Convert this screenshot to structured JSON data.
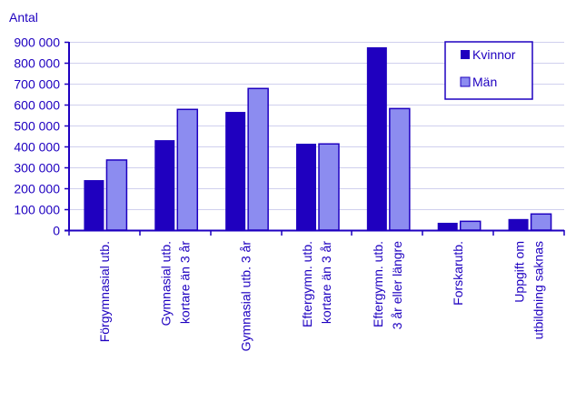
{
  "chart_data": {
    "type": "bar",
    "title": "",
    "ylabel": "Antal",
    "xlabel": "",
    "ylim": [
      0,
      900000
    ],
    "yticks": [
      0,
      100000,
      200000,
      300000,
      400000,
      500000,
      600000,
      700000,
      800000,
      900000
    ],
    "ytick_labels": [
      "0",
      "100 000",
      "200 000",
      "300 000",
      "400 000",
      "500 000",
      "600 000",
      "700 000",
      "800 000",
      "900 000"
    ],
    "grid": true,
    "legend_position": "top-right",
    "categories": [
      [
        "Förgymnasial utb."
      ],
      [
        "Gymnasial utb.",
        "kortare än 3 år"
      ],
      [
        "Gymnasial utb. 3 år"
      ],
      [
        "Eftergymn. utb.",
        "kortare än 3 år"
      ],
      [
        "Eftergymn. utb.",
        "3 år eller längre"
      ],
      [
        "Forskarutb."
      ],
      [
        "Uppgift om",
        "utbildning saknas"
      ]
    ],
    "series": [
      {
        "name": "Kvinnor",
        "color": "#1f00bf",
        "values": [
          239000,
          430000,
          565000,
          413000,
          874000,
          35000,
          53000
        ]
      },
      {
        "name": "Män",
        "color": "#8c8cf0",
        "values": [
          335000,
          577000,
          677000,
          412000,
          581000,
          42000,
          77000
        ]
      }
    ]
  },
  "colors": {
    "text": "#1e00c0",
    "axis": "#1e00c0",
    "grid": "#d0d0ee",
    "bar_border": "#1e00c0"
  }
}
